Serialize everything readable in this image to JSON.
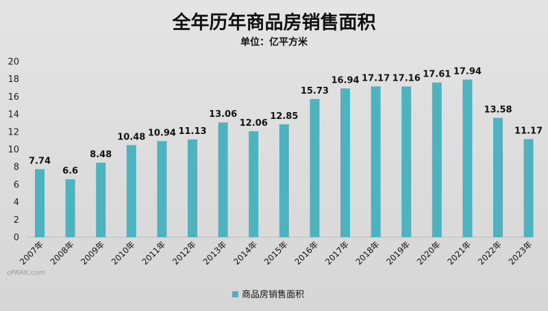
{
  "chart_data": {
    "type": "bar",
    "title": "全年历年商品房销售面积",
    "subtitle": "单位：亿平方米",
    "categories": [
      "2007年",
      "2008年",
      "2009年",
      "2010年",
      "2011年",
      "2012年",
      "2013年",
      "2014年",
      "2015年",
      "2016年",
      "2017年",
      "2018年",
      "2019年",
      "2020年",
      "2021年",
      "2022年",
      "2023年"
    ],
    "series": [
      {
        "name": "商品房销售面积",
        "values": [
          7.74,
          6.6,
          8.48,
          10.48,
          10.94,
          11.13,
          13.06,
          12.06,
          12.85,
          15.73,
          16.94,
          17.17,
          17.16,
          17.61,
          17.94,
          13.58,
          11.17
        ],
        "data_labels": [
          "7.74",
          "6.6",
          "8.48",
          "10.48",
          "10.94",
          "11.13",
          "13.06",
          "12.06",
          "12.85",
          "15.73",
          "16.94",
          "17.17",
          "17.16",
          "17.61",
          "17.94",
          "13.58",
          "11.17"
        ]
      }
    ],
    "ylim": [
      0,
      20
    ],
    "yticks": [
      "0",
      "2",
      "4",
      "6",
      "8",
      "10",
      "12",
      "14",
      "16",
      "18",
      "20"
    ],
    "grid": false,
    "legend_position": "bottom",
    "bar_color": "#4fb3bf"
  },
  "watermark": "oPARK.com"
}
